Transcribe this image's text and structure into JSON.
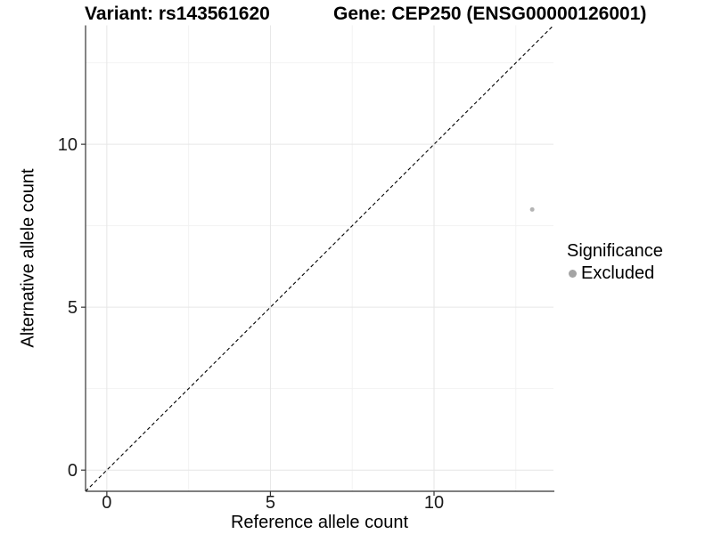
{
  "header": {
    "variant_title": "Variant: rs143561620",
    "gene_title": "Gene: CEP250 (ENSG00000126001)"
  },
  "legend": {
    "title": "Significance",
    "items": [
      {
        "label": "Excluded",
        "color": "#a4a4a4"
      }
    ]
  },
  "chart_data": {
    "type": "scatter",
    "title": "Variant: rs143561620 / Gene: CEP250 (ENSG00000126001)",
    "xlabel": "Reference allele count",
    "ylabel": "Alternative allele count",
    "xlim": [
      -0.65,
      13.65
    ],
    "ylim": [
      -0.65,
      13.65
    ],
    "x_ticks": [
      0,
      5,
      10
    ],
    "y_ticks": [
      0,
      5,
      10
    ],
    "x_minor_ticks": [
      2.5,
      7.5,
      12.5
    ],
    "y_minor_ticks": [
      2.5,
      7.5,
      12.5
    ],
    "grid": true,
    "legend_position": "right",
    "series": [
      {
        "name": "Excluded",
        "color": "#b4b4b4",
        "point_radius": 2.5,
        "points": [
          {
            "x": 13,
            "y": 8
          }
        ]
      }
    ],
    "reference_line": {
      "kind": "identity",
      "slope": 1,
      "intercept": 0,
      "style": "dashed",
      "color": "#000000"
    }
  },
  "colors": {
    "background": "#ffffff",
    "grid_major": "#e6e6e6",
    "grid_minor": "#f2f2f2",
    "axis": "#333333",
    "tick_label": "#1a1a1a"
  }
}
